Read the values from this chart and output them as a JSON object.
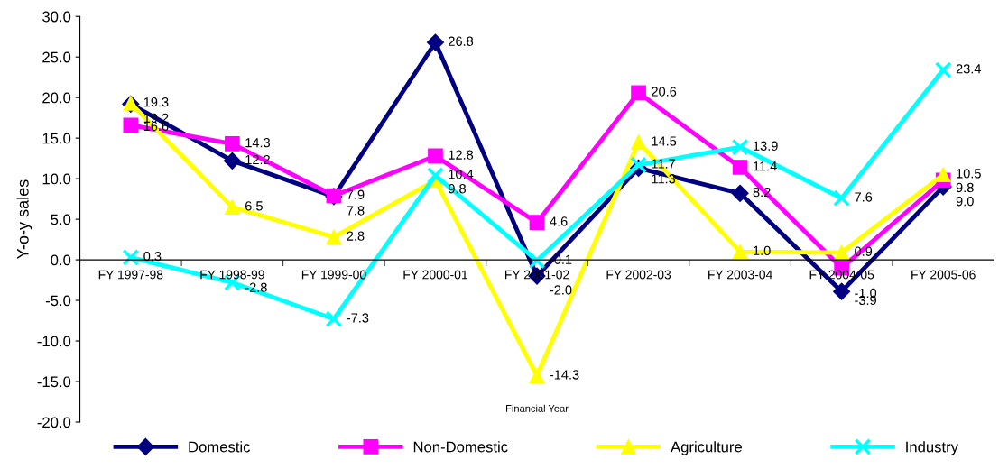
{
  "chart_data": {
    "type": "line",
    "xlabel": "Financial Year",
    "ylabel": "Y-o-y sales",
    "categories": [
      "FY 1997-98",
      "FY 1998-99",
      "FY 1999-00",
      "FY 2000-01",
      "FY 2001-02",
      "FY 2002-03",
      "FY 2003-04",
      "FY 2004-05",
      "FY 2005-06"
    ],
    "series": [
      {
        "name": "Domestic",
        "color": "#000080",
        "marker": "diamond",
        "values": [
          19.2,
          12.2,
          7.8,
          26.8,
          -2.0,
          11.3,
          8.2,
          -3.9,
          9.0
        ],
        "value_labels": [
          "19.2",
          "12.2",
          "7.8",
          "26.8",
          "-2.0",
          "11.3",
          "8.2",
          "-3.9",
          "9.0"
        ]
      },
      {
        "name": "Non-Domestic",
        "color": "#ff00ff",
        "marker": "square",
        "values": [
          16.6,
          14.3,
          7.9,
          12.8,
          4.6,
          20.6,
          11.4,
          -1.0,
          9.8
        ],
        "value_labels": [
          "16.6",
          "14.3",
          "7.9",
          "12.8",
          "4.6",
          "20.6",
          "11.4",
          "-1.0",
          "9.8"
        ]
      },
      {
        "name": "Agriculture",
        "color": "#ffff00",
        "marker": "triangle",
        "values": [
          19.3,
          6.5,
          2.8,
          9.8,
          -14.3,
          14.5,
          1.0,
          0.9,
          10.5
        ],
        "value_labels": [
          "19.3",
          "6.5",
          "2.8",
          "9.8",
          "-14.3",
          "14.5",
          "1.0",
          "0.9",
          "10.5"
        ]
      },
      {
        "name": "Industry",
        "color": "#00ffff",
        "marker": "cross",
        "values": [
          0.3,
          -2.8,
          -7.3,
          10.4,
          -0.1,
          11.7,
          13.9,
          7.6,
          23.4
        ],
        "value_labels": [
          "0.3",
          "-2.8",
          "-7.3",
          "10.4",
          "-0.1",
          "11.7",
          "13.9",
          "7.6",
          "23.4"
        ]
      }
    ],
    "ylim": [
      -20,
      30
    ],
    "yticks": [
      {
        "value": -20,
        "label": "-20.0"
      },
      {
        "value": -15,
        "label": "-15.0"
      },
      {
        "value": -10,
        "label": "-10.0"
      },
      {
        "value": -5,
        "label": "-5.0"
      },
      {
        "value": 0,
        "label": "0.0"
      },
      {
        "value": 5,
        "label": "5.0"
      },
      {
        "value": 10,
        "label": "10.0"
      },
      {
        "value": 15,
        "label": "15.0"
      },
      {
        "value": 20,
        "label": "20.0"
      },
      {
        "value": 25,
        "label": "25.0"
      },
      {
        "value": 30,
        "label": "30.0"
      }
    ],
    "grid": false,
    "legend": "bottom"
  }
}
